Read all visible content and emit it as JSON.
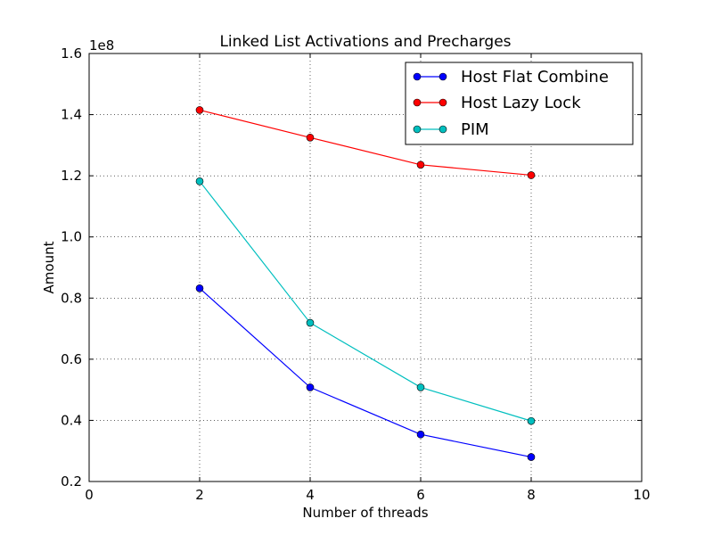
{
  "chart_data": {
    "type": "line",
    "title": "Linked List Activations and Precharges",
    "xlabel": "Number of threads",
    "ylabel": "Amount",
    "y_scale_label": "1e8",
    "xlim": [
      0,
      10
    ],
    "ylim": [
      0.2,
      1.6
    ],
    "x_ticks": [
      0,
      2,
      4,
      6,
      8,
      10
    ],
    "y_ticks": [
      0.2,
      0.4,
      0.6,
      0.8,
      1.0,
      1.2,
      1.4,
      1.6
    ],
    "x_tick_labels": [
      "0",
      "2",
      "4",
      "6",
      "8",
      "10"
    ],
    "y_tick_labels": [
      "0.2",
      "0.4",
      "0.6",
      "0.8",
      "1.0",
      "1.2",
      "1.4",
      "1.6"
    ],
    "grid": true,
    "legend_position": "top-right",
    "x": [
      2,
      4,
      6,
      8
    ],
    "series": [
      {
        "name": "Host Flat Combine",
        "color": "#0000ff",
        "values": [
          0.832,
          0.508,
          0.354,
          0.28
        ]
      },
      {
        "name": "Host Lazy Lock",
        "color": "#ff0000",
        "values": [
          1.415,
          1.325,
          1.236,
          1.202
        ]
      },
      {
        "name": "PIM",
        "color": "#00bfbf",
        "values": [
          1.182,
          0.719,
          0.508,
          0.398
        ]
      }
    ]
  }
}
